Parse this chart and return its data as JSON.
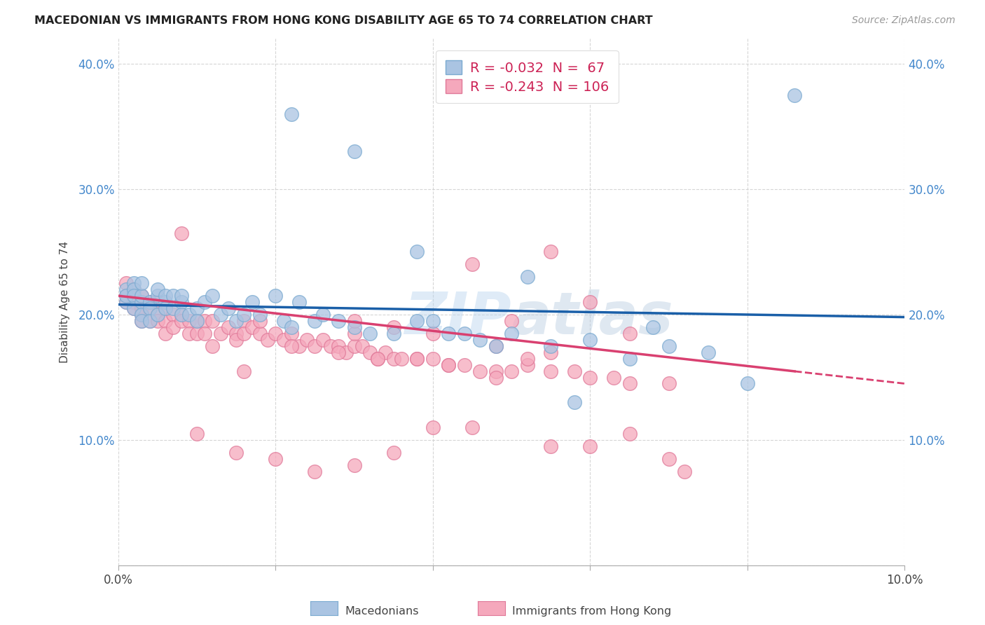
{
  "title": "MACEDONIAN VS IMMIGRANTS FROM HONG KONG DISABILITY AGE 65 TO 74 CORRELATION CHART",
  "source": "Source: ZipAtlas.com",
  "ylabel": "Disability Age 65 to 74",
  "xlim": [
    0.0,
    0.1
  ],
  "ylim": [
    0.0,
    0.42
  ],
  "macedonian_color": "#aac4e2",
  "hk_color": "#f5a8bc",
  "macedonian_edge": "#7aaad0",
  "hk_edge": "#e07898",
  "macedonian_line_color": "#1a5fa8",
  "hk_line_color": "#d94070",
  "background_color": "#ffffff",
  "grid_color": "#cccccc",
  "legend_macedonian_R": "-0.032",
  "legend_macedonian_N": "67",
  "legend_hk_R": "-0.243",
  "legend_hk_N": "106",
  "mac_line_x0": 0.0,
  "mac_line_y0": 0.208,
  "mac_line_x1": 0.1,
  "mac_line_y1": 0.198,
  "hk_line_x0": 0.0,
  "hk_line_y0": 0.215,
  "hk_line_solid_x1": 0.086,
  "hk_line_x1": 0.1,
  "hk_line_y1": 0.145,
  "macedonian_x": [
    0.001,
    0.001,
    0.001,
    0.002,
    0.002,
    0.002,
    0.002,
    0.003,
    0.003,
    0.003,
    0.003,
    0.003,
    0.004,
    0.004,
    0.004,
    0.005,
    0.005,
    0.005,
    0.006,
    0.006,
    0.006,
    0.007,
    0.007,
    0.008,
    0.008,
    0.008,
    0.009,
    0.01,
    0.01,
    0.011,
    0.012,
    0.013,
    0.014,
    0.015,
    0.016,
    0.017,
    0.018,
    0.02,
    0.021,
    0.022,
    0.023,
    0.025,
    0.026,
    0.028,
    0.03,
    0.032,
    0.035,
    0.038,
    0.04,
    0.042,
    0.044,
    0.046,
    0.048,
    0.05,
    0.055,
    0.06,
    0.065,
    0.07,
    0.075,
    0.08,
    0.022,
    0.03,
    0.038,
    0.052,
    0.058,
    0.068,
    0.086
  ],
  "macedonian_y": [
    0.21,
    0.22,
    0.215,
    0.225,
    0.22,
    0.215,
    0.205,
    0.21,
    0.215,
    0.2,
    0.195,
    0.225,
    0.21,
    0.205,
    0.195,
    0.215,
    0.2,
    0.22,
    0.21,
    0.215,
    0.205,
    0.215,
    0.205,
    0.21,
    0.2,
    0.215,
    0.2,
    0.205,
    0.195,
    0.21,
    0.215,
    0.2,
    0.205,
    0.195,
    0.2,
    0.21,
    0.2,
    0.215,
    0.195,
    0.19,
    0.21,
    0.195,
    0.2,
    0.195,
    0.19,
    0.185,
    0.185,
    0.195,
    0.195,
    0.185,
    0.185,
    0.18,
    0.175,
    0.185,
    0.175,
    0.18,
    0.165,
    0.175,
    0.17,
    0.145,
    0.36,
    0.33,
    0.25,
    0.23,
    0.13,
    0.19,
    0.375
  ],
  "hk_x": [
    0.001,
    0.001,
    0.001,
    0.002,
    0.002,
    0.002,
    0.002,
    0.003,
    0.003,
    0.003,
    0.003,
    0.004,
    0.004,
    0.004,
    0.005,
    0.005,
    0.005,
    0.006,
    0.006,
    0.006,
    0.007,
    0.007,
    0.008,
    0.008,
    0.009,
    0.009,
    0.01,
    0.01,
    0.011,
    0.011,
    0.012,
    0.013,
    0.014,
    0.015,
    0.015,
    0.016,
    0.016,
    0.017,
    0.018,
    0.019,
    0.02,
    0.021,
    0.022,
    0.023,
    0.024,
    0.025,
    0.026,
    0.027,
    0.028,
    0.029,
    0.03,
    0.03,
    0.031,
    0.032,
    0.033,
    0.034,
    0.035,
    0.036,
    0.038,
    0.04,
    0.042,
    0.044,
    0.046,
    0.048,
    0.05,
    0.052,
    0.055,
    0.058,
    0.06,
    0.063,
    0.065,
    0.07,
    0.045,
    0.05,
    0.055,
    0.06,
    0.065,
    0.048,
    0.052,
    0.055,
    0.03,
    0.035,
    0.04,
    0.01,
    0.015,
    0.02,
    0.025,
    0.03,
    0.035,
    0.04,
    0.045,
    0.055,
    0.06,
    0.018,
    0.022,
    0.028,
    0.033,
    0.038,
    0.042,
    0.048,
    0.008,
    0.012,
    0.016,
    0.065,
    0.07,
    0.072
  ],
  "hk_y": [
    0.21,
    0.225,
    0.215,
    0.22,
    0.21,
    0.205,
    0.215,
    0.215,
    0.205,
    0.195,
    0.2,
    0.21,
    0.205,
    0.195,
    0.21,
    0.2,
    0.195,
    0.205,
    0.195,
    0.185,
    0.2,
    0.19,
    0.2,
    0.195,
    0.195,
    0.185,
    0.195,
    0.185,
    0.195,
    0.185,
    0.195,
    0.185,
    0.19,
    0.185,
    0.18,
    0.195,
    0.185,
    0.19,
    0.185,
    0.18,
    0.185,
    0.18,
    0.185,
    0.175,
    0.18,
    0.175,
    0.18,
    0.175,
    0.175,
    0.17,
    0.175,
    0.185,
    0.175,
    0.17,
    0.165,
    0.17,
    0.165,
    0.165,
    0.165,
    0.165,
    0.16,
    0.16,
    0.155,
    0.155,
    0.155,
    0.16,
    0.155,
    0.155,
    0.15,
    0.15,
    0.145,
    0.145,
    0.24,
    0.195,
    0.25,
    0.21,
    0.185,
    0.175,
    0.165,
    0.17,
    0.195,
    0.19,
    0.185,
    0.105,
    0.09,
    0.085,
    0.075,
    0.08,
    0.09,
    0.11,
    0.11,
    0.095,
    0.095,
    0.195,
    0.175,
    0.17,
    0.165,
    0.165,
    0.16,
    0.15,
    0.265,
    0.175,
    0.155,
    0.105,
    0.085,
    0.075
  ]
}
